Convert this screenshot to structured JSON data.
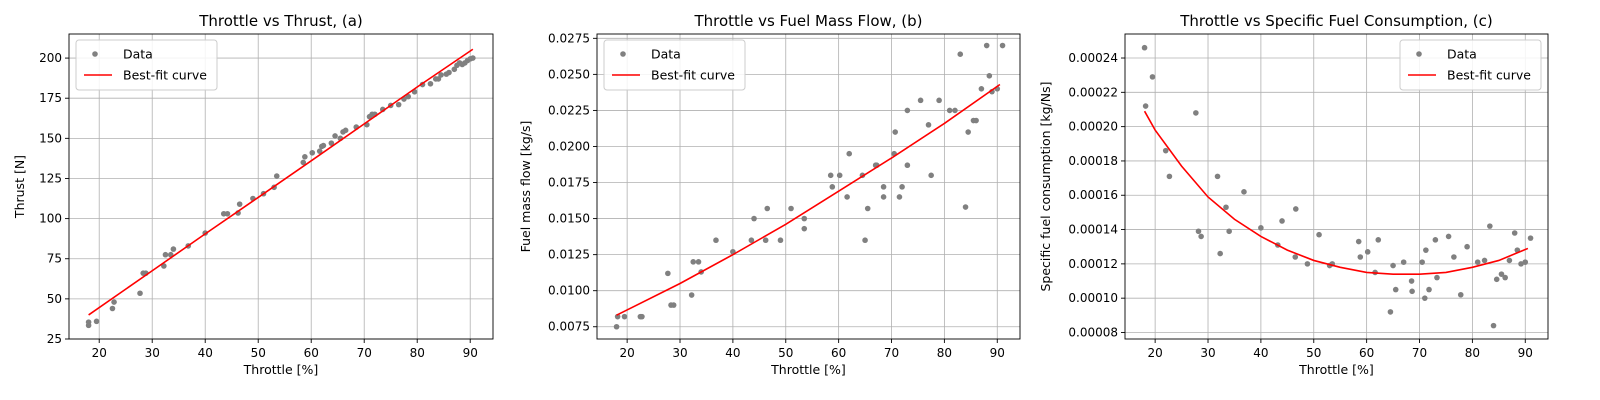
{
  "chart_data": [
    {
      "type": "scatter",
      "title": "Throttle vs Thrust, (a)",
      "xlabel": "Throttle [%]",
      "ylabel": "Thrust [N]",
      "xlim": [
        14.3,
        94.3
      ],
      "ylim": [
        25,
        215
      ],
      "xticks": [
        20,
        30,
        40,
        50,
        60,
        70,
        80,
        90
      ],
      "yticks": [
        25,
        50,
        75,
        100,
        125,
        150,
        175,
        200
      ],
      "tick_labels": [
        "20",
        "30",
        "40",
        "50",
        "60",
        "70",
        "80",
        "90"
      ],
      "ytick_labels": [
        "25",
        "50",
        "75",
        "100",
        "125",
        "150",
        "175",
        "200"
      ],
      "grid": true,
      "legend": {
        "position": "top-left",
        "entries": [
          "Data",
          "Best-fit curve"
        ]
      },
      "colors": {
        "data": "#808080",
        "fit": "#ff0000"
      },
      "series": [
        {
          "name": "Data",
          "kind": "scatter",
          "x": [
            18.0,
            18.0,
            19.5,
            22.5,
            22.8,
            27.7,
            28.3,
            28.8,
            32.2,
            32.5,
            33.5,
            34.0,
            36.8,
            40.0,
            43.5,
            44.2,
            46.2,
            46.5,
            49.0,
            51.0,
            53.0,
            53.5,
            58.5,
            58.8,
            60.2,
            61.6,
            62.0,
            62.3,
            63.8,
            64.5,
            65.5,
            66.0,
            66.5,
            68.5,
            70.5,
            71.0,
            71.5,
            72.0,
            73.5,
            75.0,
            76.5,
            77.5,
            78.3,
            79.5,
            81.0,
            82.5,
            83.5,
            84.0,
            84.5,
            85.5,
            86.0,
            87.0,
            87.5,
            88.0,
            88.5,
            89.0,
            89.5,
            90.0,
            90.5
          ],
          "y": [
            33.5,
            35.5,
            36.0,
            44.0,
            48.0,
            53.5,
            66.0,
            66.0,
            70.5,
            77.5,
            77.5,
            81.0,
            83.0,
            91.0,
            103.0,
            103.0,
            103.5,
            109.0,
            112.5,
            115.5,
            119.5,
            126.5,
            135.0,
            138.5,
            141.0,
            142.0,
            145.0,
            145.5,
            147.0,
            151.5,
            150.0,
            154.0,
            155.0,
            157.0,
            158.5,
            163.5,
            165.0,
            165.0,
            168.0,
            170.5,
            171.0,
            174.5,
            176.0,
            179.0,
            183.5,
            184.0,
            187.0,
            187.0,
            189.5,
            190.0,
            191.0,
            193.0,
            195.5,
            197.0,
            196.0,
            197.0,
            198.5,
            199.5,
            200.0
          ]
        },
        {
          "name": "Best-fit curve",
          "kind": "line",
          "x": [
            18.0,
            30.0,
            40.0,
            50.0,
            60.0,
            70.0,
            80.0,
            90.5
          ],
          "y": [
            40.0,
            67.5,
            90.5,
            113.2,
            136.0,
            159.0,
            182.0,
            205.5
          ]
        }
      ]
    },
    {
      "type": "scatter",
      "title": "Throttle vs Fuel Mass Flow, (b)",
      "xlabel": "Throttle [%]",
      "ylabel": "Fuel mass flow [kg/s]",
      "xlim": [
        14.3,
        94.3
      ],
      "ylim": [
        0.00665,
        0.0278
      ],
      "xticks": [
        20,
        30,
        40,
        50,
        60,
        70,
        80,
        90
      ],
      "yticks": [
        0.0075,
        0.01,
        0.0125,
        0.015,
        0.0175,
        0.02,
        0.0225,
        0.025,
        0.0275
      ],
      "tick_labels": [
        "20",
        "30",
        "40",
        "50",
        "60",
        "70",
        "80",
        "90"
      ],
      "ytick_labels": [
        "0.0075",
        "0.0100",
        "0.0125",
        "0.0150",
        "0.0175",
        "0.0200",
        "0.0225",
        "0.0250",
        "0.0275"
      ],
      "grid": true,
      "legend": {
        "position": "top-left",
        "entries": [
          "Data",
          "Best-fit curve"
        ]
      },
      "colors": {
        "data": "#808080",
        "fit": "#ff0000"
      },
      "series": [
        {
          "name": "Data",
          "kind": "scatter",
          "x": [
            18.0,
            18.2,
            19.5,
            22.5,
            22.8,
            27.7,
            28.3,
            28.8,
            32.2,
            32.5,
            33.5,
            34.0,
            36.8,
            40.0,
            43.5,
            44.0,
            46.2,
            46.5,
            49.0,
            51.0,
            53.5,
            53.5,
            58.5,
            58.8,
            60.2,
            61.6,
            62.0,
            64.5,
            65.0,
            65.5,
            67.0,
            67.2,
            68.5,
            68.5,
            70.5,
            70.7,
            71.5,
            72.0,
            73.0,
            73.0,
            75.5,
            77.0,
            77.5,
            79.0,
            81.0,
            82.0,
            83.0,
            84.0,
            84.5,
            85.5,
            86.0,
            87.0,
            88.0,
            88.5,
            89.0,
            90.0,
            91.0
          ],
          "y": [
            0.0075,
            0.0082,
            0.0082,
            0.0082,
            0.0082,
            0.0112,
            0.009,
            0.009,
            0.0097,
            0.012,
            0.012,
            0.0113,
            0.0135,
            0.0127,
            0.0135,
            0.015,
            0.0135,
            0.0157,
            0.0135,
            0.0157,
            0.0143,
            0.015,
            0.018,
            0.0172,
            0.018,
            0.0165,
            0.0195,
            0.018,
            0.0135,
            0.0157,
            0.0187,
            0.0187,
            0.0172,
            0.0165,
            0.0195,
            0.021,
            0.0165,
            0.0172,
            0.0187,
            0.0225,
            0.0232,
            0.0215,
            0.018,
            0.0232,
            0.0225,
            0.0225,
            0.0264,
            0.0158,
            0.021,
            0.0218,
            0.0218,
            0.024,
            0.027,
            0.0249,
            0.0238,
            0.024,
            0.027
          ]
        },
        {
          "name": "Best-fit curve",
          "kind": "line",
          "x": [
            18.0,
            30.0,
            40.0,
            50.0,
            60.0,
            70.0,
            80.0,
            90.5
          ],
          "y": [
            0.0083,
            0.0105,
            0.0125,
            0.0146,
            0.0169,
            0.0192,
            0.0216,
            0.0243
          ]
        }
      ]
    },
    {
      "type": "scatter",
      "title": "Throttle vs Specific Fuel Consumption, (c)",
      "xlabel": "Throttle [%]",
      "ylabel": "Specific fuel consumption [kg/Ns]",
      "xlim": [
        14.3,
        94.3
      ],
      "ylim": [
        7.62e-05,
        0.000254
      ],
      "xticks": [
        20,
        30,
        40,
        50,
        60,
        70,
        80,
        90
      ],
      "yticks": [
        8e-05,
        0.0001,
        0.00012,
        0.00014,
        0.00016,
        0.00018,
        0.0002,
        0.00022,
        0.00024
      ],
      "tick_labels": [
        "20",
        "30",
        "40",
        "50",
        "60",
        "70",
        "80",
        "90"
      ],
      "ytick_labels": [
        "0.00008",
        "0.00010",
        "0.00012",
        "0.00014",
        "0.00016",
        "0.00018",
        "0.00020",
        "0.00022",
        "0.00024"
      ],
      "grid": true,
      "legend": {
        "position": "top-right",
        "entries": [
          "Data",
          "Best-fit curve"
        ]
      },
      "colors": {
        "data": "#808080",
        "fit": "#ff0000"
      },
      "series": [
        {
          "name": "Data",
          "kind": "scatter",
          "x": [
            18.0,
            18.2,
            19.5,
            22.0,
            22.7,
            27.7,
            28.2,
            28.7,
            31.8,
            32.3,
            33.4,
            34.0,
            36.8,
            40.0,
            43.2,
            44.0,
            46.5,
            46.6,
            48.8,
            51.0,
            53.0,
            53.5,
            58.5,
            58.8,
            60.2,
            61.6,
            62.2,
            64.5,
            65.0,
            65.5,
            67.0,
            68.5,
            68.6,
            70.5,
            71.0,
            71.2,
            71.8,
            73.0,
            73.3,
            75.5,
            76.5,
            77.8,
            79.0,
            81.0,
            82.3,
            83.3,
            84.0,
            84.6,
            85.5,
            86.2,
            87.0,
            88.0,
            88.5,
            89.2,
            90.0,
            91.0
          ],
          "y": [
            0.000246,
            0.000212,
            0.000229,
            0.000186,
            0.000171,
            0.000208,
            0.000139,
            0.000136,
            0.000171,
            0.000126,
            0.000153,
            0.000139,
            0.000162,
            0.000141,
            0.000131,
            0.000145,
            0.000124,
            0.000152,
            0.00012,
            0.000137,
            0.000119,
            0.00012,
            0.000133,
            0.000124,
            0.000127,
            0.000115,
            0.000134,
            9.2e-05,
            0.000119,
            0.000105,
            0.000121,
            0.00011,
            0.000104,
            0.000121,
            0.0001,
            0.000128,
            0.000105,
            0.000134,
            0.000112,
            0.000136,
            0.000124,
            0.000102,
            0.00013,
            0.000121,
            0.000122,
            0.000142,
            8.4e-05,
            0.000111,
            0.000114,
            0.000112,
            0.000122,
            0.000138,
            0.000128,
            0.00012,
            0.000121,
            0.000135
          ]
        },
        {
          "name": "Best-fit curve",
          "kind": "line",
          "x": [
            18.0,
            20.0,
            25.0,
            30.0,
            35.0,
            40.0,
            45.0,
            50.0,
            55.0,
            60.0,
            65.0,
            70.0,
            75.0,
            80.0,
            85.0,
            90.5
          ],
          "y": [
            0.000209,
            0.000198,
            0.000177,
            0.000159,
            0.000146,
            0.000136,
            0.000128,
            0.000122,
            0.000118,
            0.000115,
            0.000114,
            0.000114,
            0.000115,
            0.000118,
            0.000122,
            0.000129
          ]
        }
      ]
    }
  ]
}
